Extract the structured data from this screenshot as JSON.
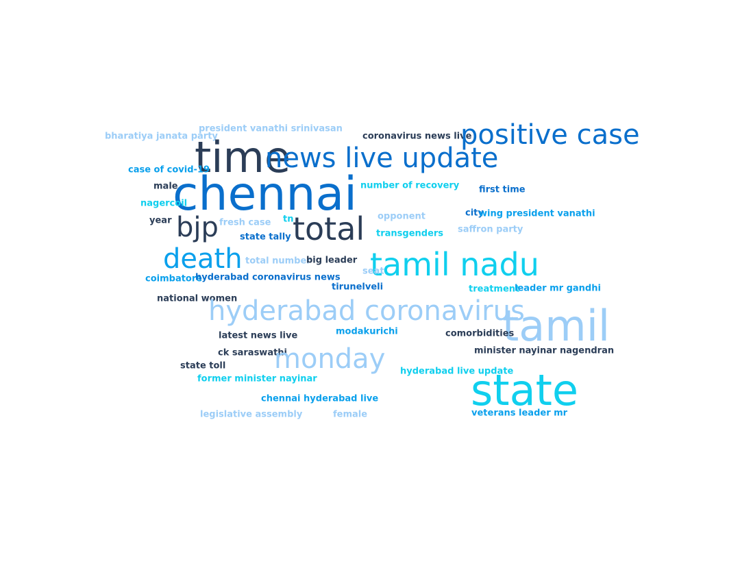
{
  "palette": {
    "dark": "#2b3d57",
    "blue": "#0a6fcc",
    "sky": "#0aa0ec",
    "cyan": "#10cfee",
    "light": "#9ccdf7"
  },
  "words": [
    {
      "text": "bharatiya janata party",
      "color": "light"
    },
    {
      "text": "president vanathi srinivasan",
      "color": "light"
    },
    {
      "text": "coronavirus news live",
      "color": "dark"
    },
    {
      "text": "positive case",
      "color": "blue"
    },
    {
      "text": "time",
      "color": "dark"
    },
    {
      "text": "news live update",
      "color": "blue"
    },
    {
      "text": "case of covid-19",
      "color": "sky"
    },
    {
      "text": "male",
      "color": "dark"
    },
    {
      "text": "chennai",
      "color": "blue"
    },
    {
      "text": "number of recovery",
      "color": "cyan"
    },
    {
      "text": "first time",
      "color": "blue"
    },
    {
      "text": "nagercoil",
      "color": "cyan"
    },
    {
      "text": "year",
      "color": "dark"
    },
    {
      "text": "bjp",
      "color": "dark"
    },
    {
      "text": "fresh case",
      "color": "light"
    },
    {
      "text": "tn",
      "color": "cyan"
    },
    {
      "text": "total",
      "color": "dark"
    },
    {
      "text": "opponent",
      "color": "light"
    },
    {
      "text": "city",
      "color": "blue"
    },
    {
      "text": "wing president vanathi",
      "color": "sky"
    },
    {
      "text": "saffron party",
      "color": "light"
    },
    {
      "text": "state tally",
      "color": "blue"
    },
    {
      "text": "transgenders",
      "color": "cyan"
    },
    {
      "text": "death",
      "color": "sky"
    },
    {
      "text": "total number",
      "color": "light"
    },
    {
      "text": "big leader",
      "color": "dark"
    },
    {
      "text": "tamil nadu",
      "color": "cyan"
    },
    {
      "text": "seat",
      "color": "light"
    },
    {
      "text": "coimbatore",
      "color": "sky"
    },
    {
      "text": "hyderabad coronavirus news",
      "color": "blue"
    },
    {
      "text": "tirunelveli",
      "color": "blue"
    },
    {
      "text": "treatment",
      "color": "cyan"
    },
    {
      "text": "leader mr gandhi",
      "color": "sky"
    },
    {
      "text": "national women",
      "color": "dark"
    },
    {
      "text": "hyderabad coronavirus",
      "color": "light"
    },
    {
      "text": "tamil",
      "color": "light"
    },
    {
      "text": "latest news live",
      "color": "dark"
    },
    {
      "text": "modakurichi",
      "color": "sky"
    },
    {
      "text": "comorbidities",
      "color": "dark"
    },
    {
      "text": "ck saraswathi",
      "color": "dark"
    },
    {
      "text": "monday",
      "color": "light"
    },
    {
      "text": "minister nayinar nagendran",
      "color": "dark"
    },
    {
      "text": "state toll",
      "color": "dark"
    },
    {
      "text": "hyderabad live update",
      "color": "cyan"
    },
    {
      "text": "former minister nayinar",
      "color": "cyan"
    },
    {
      "text": "state",
      "color": "cyan"
    },
    {
      "text": "chennai hyderabad live",
      "color": "sky"
    },
    {
      "text": "legislative assembly",
      "color": "light"
    },
    {
      "text": "female",
      "color": "light"
    },
    {
      "text": "veterans leader mr",
      "color": "sky"
    }
  ]
}
